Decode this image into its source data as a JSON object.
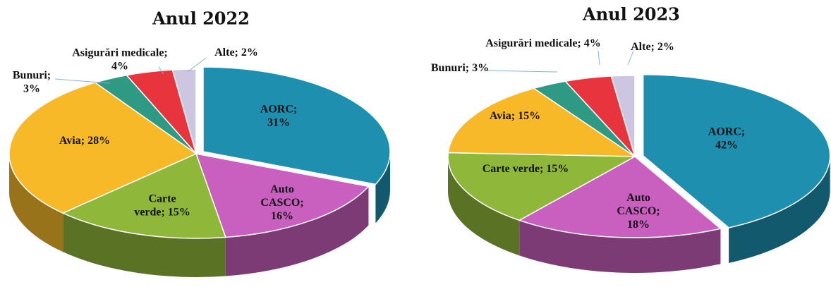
{
  "chart_data": [
    {
      "type": "pie",
      "title": "Anul 2022",
      "values": [
        31,
        16,
        15,
        28,
        3,
        4,
        2
      ],
      "value_labels": [
        "AORC; 31%",
        "Auto CASCO; 16%",
        "Carte verde; 15%",
        "Avia; 28%",
        "Bunuri; 3%",
        "Asigurări medicale; 4%",
        "Alte; 2%"
      ],
      "colors": [
        "#1f8fb0",
        "#c95fbf",
        "#8fb83a",
        "#f7b928",
        "#2e9a83",
        "#e8343c",
        "#cdc6e0"
      ]
    },
    {
      "type": "pie",
      "title": "Anul 2023",
      "values": [
        42,
        18,
        15,
        15,
        3,
        4,
        2
      ],
      "value_labels": [
        "AORC; 42%",
        "Auto CASCO; 18%",
        "Carte verde; 15%",
        "Avia; 15%",
        "Bunuri; 3%",
        "Asigurări medicale; 4%",
        "Alte; 2%"
      ],
      "colors": [
        "#1f8fb0",
        "#c95fbf",
        "#8fb83a",
        "#f7b928",
        "#2e9a83",
        "#e8343c",
        "#cdc6e0"
      ]
    }
  ]
}
